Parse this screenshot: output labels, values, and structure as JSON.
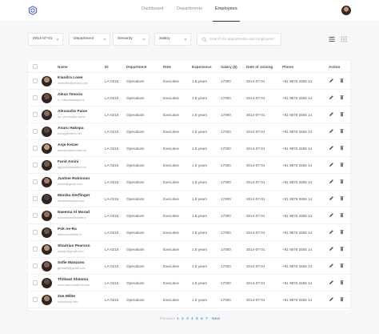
{
  "nav": {
    "tabs": [
      {
        "label": "Dashboard",
        "active": false
      },
      {
        "label": "Departments",
        "active": false
      },
      {
        "label": "Employees",
        "active": true
      }
    ],
    "logo_icon": "hexagon-logo-icon",
    "avatar_icon": "user-avatar"
  },
  "filters": {
    "date": "2014-07-01",
    "department": "Department",
    "seniority": "Seniority",
    "salary": "Salary",
    "search_placeholder": "Search for departments and employees",
    "view_icons": [
      "list-view-icon",
      "grid-view-icon"
    ]
  },
  "table": {
    "headers": [
      "Name",
      "ID",
      "Department",
      "Role",
      "Experience",
      "Salary ($)",
      "Date of Joining",
      "Phone",
      "Action"
    ],
    "rows": [
      {
        "name": "Kiandra Lowe",
        "email": "lenecithe@mivien.com",
        "id": "LA-0215",
        "department": "Operations",
        "role": "Executive",
        "experience": "1.5 years",
        "salary": "17000",
        "joining": "2014-07-01",
        "phone": "+91 9876 3456 14"
      },
      {
        "name": "Alexa Tenorio",
        "email": "n_ruffoondraagon.ls",
        "id": "LA-0215",
        "department": "Operations",
        "role": "Executive",
        "experience": "1.5 years",
        "salary": "17000",
        "joining": "2014-07-01",
        "phone": "+91 9876 3456 14"
      },
      {
        "name": "Alexandre Paive",
        "email": "nu_vemdutofo.name",
        "id": "LA-0215",
        "department": "Operations",
        "role": "Executive",
        "experience": "1.5 years",
        "salary": "17000",
        "joining": "2014-07-01",
        "phone": "+91 9876 3456 14"
      },
      {
        "name": "Anaru Hakopa",
        "email": "kovaygiertech.net",
        "id": "LA-0215",
        "department": "Operations",
        "role": "Executive",
        "experience": "1.5 years",
        "salary": "17000",
        "joining": "2014-07-01",
        "phone": "+91 9876 3456 14"
      },
      {
        "name": "Anje Keizer",
        "email": "anerkunderbrother.ca",
        "id": "LA-0215",
        "department": "Operations",
        "role": "Executive",
        "experience": "1.5 years",
        "salary": "17000",
        "joining": "2014-07-01",
        "phone": "+91 9876 3456 14"
      },
      {
        "name": "Farid Amini",
        "email": "aguamonddontech.ts",
        "id": "LA-0215",
        "department": "Operations",
        "role": "Executive",
        "experience": "1.5 years",
        "salary": "17000",
        "joining": "2014-07-01",
        "phone": "+91 9876 3456 14"
      },
      {
        "name": "Justine Robinson",
        "email": "lduoid@gmail.com",
        "id": "LA-0215",
        "department": "Operations",
        "role": "Executive",
        "experience": "1.5 years",
        "salary": "17000",
        "joining": "2014-07-01",
        "phone": "+91 9876 3456 14"
      },
      {
        "name": "Monika Derflinger",
        "email": "aexdseleistiche.nsh",
        "id": "LA-0215",
        "department": "Operations",
        "role": "Executive",
        "experience": "1.5 years",
        "salary": "17000",
        "joining": "2014-07-01",
        "phone": "+91 9876 3456 14"
      },
      {
        "name": "Naeema Al Morad",
        "email": "snovunrunelfoidofe.lo",
        "id": "LA-0215",
        "department": "Operations",
        "role": "Executive",
        "experience": "1.5 years",
        "salary": "17000",
        "joining": "2014-07-01",
        "phone": "+91 9876 3456 14"
      },
      {
        "name": "Pok Ae-Ra",
        "email": "ademukeefined.io",
        "id": "LA-0215",
        "department": "Operations",
        "role": "Executive",
        "experience": "1.5 years",
        "salary": "17000",
        "joining": "2014-07-01",
        "phone": "+91 9876 3456 14"
      },
      {
        "name": "Shadrias Pearson",
        "email": "raleigh@gmail.com",
        "id": "LA-0215",
        "department": "Operations",
        "role": "Executive",
        "experience": "1.5 years",
        "salary": "17000",
        "joining": "2014-07-01",
        "phone": "+91 9876 3456 14"
      },
      {
        "name": "Sofie Manzano",
        "email": "genaldd@gmail.com",
        "id": "LA-0215",
        "department": "Operations",
        "role": "Executive",
        "experience": "1.5 years",
        "salary": "17000",
        "joining": "2014-07-01",
        "phone": "+91 9876 3456 14"
      },
      {
        "name": "Thitiwat Shimma",
        "email": "ouhe.shimma@info.info",
        "id": "LA-0215",
        "department": "Operations",
        "role": "Executive",
        "experience": "1.5 years",
        "salary": "17000",
        "joining": "2014-07-01",
        "phone": "+91 9876 3456 14"
      },
      {
        "name": "Zoe Miller",
        "email": "lenumimsp.info",
        "id": "LA-0215",
        "department": "Operations",
        "role": "Executive",
        "experience": "1.5 years",
        "salary": "17000",
        "joining": "2014-07-01",
        "phone": "+91 9876 3456 14"
      }
    ],
    "action_icons": [
      "edit-pencil-icon",
      "delete-trash-icon"
    ]
  },
  "pagination": {
    "previous": "Previous",
    "pages": [
      "1",
      "2",
      "3",
      "4",
      "5",
      "6",
      "7"
    ],
    "next": "Next"
  },
  "colors": {
    "accent": "#2f6fd0",
    "text": "#333333",
    "muted": "#9aa0a8",
    "background": "#f6f7f9"
  }
}
